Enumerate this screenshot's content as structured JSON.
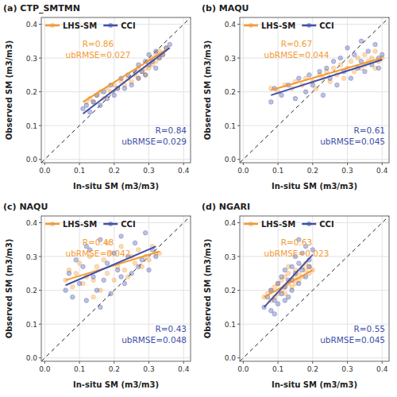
{
  "chart_data": [
    {
      "type": "scatter",
      "title": "(a) CTP_SMTMN",
      "x_label": "In-situ SM (m3/m3)",
      "y_label": "Observed SM (m3/m3)",
      "xlim": [
        -0.01,
        0.42
      ],
      "ylim": [
        -0.01,
        0.42
      ],
      "xticks": [
        {
          "value": 0,
          "label": "0.0"
        },
        0.1,
        0.2,
        0.3,
        0.4
      ],
      "yticks": [
        {
          "value": 0,
          "label": "0.0"
        },
        0.1,
        0.2,
        0.3,
        0.4
      ],
      "grid": true,
      "legend": "top-left",
      "series": [
        {
          "name": "LHS-SM",
          "color": "#f39a33",
          "marker": "circle",
          "x": [
            0.12,
            0.13,
            0.14,
            0.15,
            0.16,
            0.17,
            0.18,
            0.19,
            0.2,
            0.21,
            0.22,
            0.23,
            0.24,
            0.25,
            0.26,
            0.27,
            0.27,
            0.28,
            0.29,
            0.29,
            0.3,
            0.3,
            0.31,
            0.31,
            0.32,
            0.32,
            0.33,
            0.33,
            0.34,
            0.35
          ],
          "values": [
            0.17,
            0.18,
            0.17,
            0.19,
            0.2,
            0.18,
            0.21,
            0.2,
            0.22,
            0.21,
            0.23,
            0.22,
            0.24,
            0.23,
            0.25,
            0.24,
            0.27,
            0.26,
            0.27,
            0.25,
            0.29,
            0.27,
            0.28,
            0.3,
            0.29,
            0.31,
            0.3,
            0.32,
            0.31,
            0.33
          ],
          "fit_x": [
            0.11,
            0.35
          ],
          "fit_values": [
            0.17,
            0.325
          ],
          "annotations": [
            "R=0.86",
            "ubRMSE=0.027"
          ]
        },
        {
          "name": "CCI",
          "color": "#4050a8",
          "marker": "circle",
          "x": [
            0.11,
            0.12,
            0.13,
            0.14,
            0.15,
            0.16,
            0.17,
            0.18,
            0.19,
            0.2,
            0.21,
            0.22,
            0.23,
            0.24,
            0.25,
            0.26,
            0.27,
            0.27,
            0.28,
            0.29,
            0.29,
            0.3,
            0.3,
            0.31,
            0.32,
            0.32,
            0.33,
            0.34,
            0.35,
            0.36
          ],
          "values": [
            0.15,
            0.16,
            0.14,
            0.17,
            0.19,
            0.16,
            0.2,
            0.18,
            0.22,
            0.19,
            0.21,
            0.24,
            0.21,
            0.25,
            0.22,
            0.26,
            0.24,
            0.28,
            0.26,
            0.29,
            0.25,
            0.28,
            0.31,
            0.29,
            0.27,
            0.32,
            0.3,
            0.31,
            0.33,
            0.34
          ],
          "fit_x": [
            0.11,
            0.36
          ],
          "fit_values": [
            0.135,
            0.33
          ],
          "annotations": [
            "R=0.84",
            "ubRMSE=0.029"
          ]
        }
      ]
    },
    {
      "type": "scatter",
      "title": "(b) MAQU",
      "x_label": "In-situ SM (m3/m3)",
      "y_label": "Observed SM (m3/m3)",
      "xlim": [
        -0.01,
        0.42
      ],
      "ylim": [
        -0.01,
        0.42
      ],
      "xticks": [
        {
          "value": 0,
          "label": "0.0"
        },
        0.1,
        0.2,
        0.3,
        0.4
      ],
      "yticks": [
        {
          "value": 0,
          "label": "0.0"
        },
        0.1,
        0.2,
        0.3,
        0.4
      ],
      "grid": true,
      "legend": "top-left",
      "series": [
        {
          "name": "LHS-SM",
          "color": "#f39a33",
          "marker": "circle",
          "x": [
            0.08,
            0.1,
            0.12,
            0.14,
            0.15,
            0.17,
            0.18,
            0.2,
            0.21,
            0.22,
            0.23,
            0.24,
            0.25,
            0.26,
            0.27,
            0.28,
            0.29,
            0.3,
            0.31,
            0.32,
            0.33,
            0.34,
            0.35,
            0.35,
            0.36,
            0.37,
            0.38,
            0.38,
            0.39,
            0.4
          ],
          "values": [
            0.21,
            0.2,
            0.22,
            0.21,
            0.23,
            0.22,
            0.24,
            0.23,
            0.21,
            0.25,
            0.24,
            0.26,
            0.23,
            0.27,
            0.25,
            0.28,
            0.24,
            0.27,
            0.29,
            0.26,
            0.3,
            0.27,
            0.31,
            0.28,
            0.29,
            0.3,
            0.27,
            0.32,
            0.29,
            0.3
          ],
          "fit_x": [
            0.08,
            0.4
          ],
          "fit_values": [
            0.205,
            0.3
          ],
          "annotations": [
            "R=0.67",
            "ubRMSE=0.044"
          ]
        },
        {
          "name": "CCI",
          "color": "#4050a8",
          "marker": "circle",
          "x": [
            0.08,
            0.09,
            0.11,
            0.13,
            0.15,
            0.16,
            0.18,
            0.19,
            0.2,
            0.22,
            0.23,
            0.24,
            0.25,
            0.26,
            0.27,
            0.28,
            0.29,
            0.3,
            0.31,
            0.32,
            0.33,
            0.34,
            0.34,
            0.35,
            0.36,
            0.37,
            0.38,
            0.39,
            0.39,
            0.4
          ],
          "values": [
            0.17,
            0.21,
            0.19,
            0.22,
            0.18,
            0.24,
            0.2,
            0.25,
            0.22,
            0.26,
            0.19,
            0.27,
            0.24,
            0.29,
            0.22,
            0.3,
            0.26,
            0.33,
            0.24,
            0.31,
            0.27,
            0.35,
            0.29,
            0.26,
            0.32,
            0.28,
            0.34,
            0.3,
            0.27,
            0.31
          ],
          "fit_x": [
            0.08,
            0.4
          ],
          "fit_values": [
            0.19,
            0.295
          ],
          "annotations": [
            "R=0.61",
            "ubRMSE=0.045"
          ]
        }
      ]
    },
    {
      "type": "scatter",
      "title": "(c) NAQU",
      "x_label": "In-situ SM (m3/m3)",
      "y_label": "Observed SM (m3/m3)",
      "xlim": [
        -0.01,
        0.42
      ],
      "ylim": [
        -0.01,
        0.42
      ],
      "xticks": [
        {
          "value": 0,
          "label": "0.0"
        },
        0.1,
        0.2,
        0.3,
        0.4
      ],
      "yticks": [
        {
          "value": 0,
          "label": "0.0"
        },
        0.1,
        0.2,
        0.3,
        0.4
      ],
      "grid": true,
      "legend": "top-left",
      "series": [
        {
          "name": "LHS-SM",
          "color": "#f39a33",
          "marker": "circle",
          "x": [
            0.06,
            0.07,
            0.08,
            0.09,
            0.1,
            0.11,
            0.12,
            0.13,
            0.14,
            0.15,
            0.16,
            0.17,
            0.18,
            0.19,
            0.2,
            0.21,
            0.22,
            0.23,
            0.24,
            0.25,
            0.26,
            0.27,
            0.28,
            0.29,
            0.3,
            0.31,
            0.32,
            0.33,
            0.14,
            0.18
          ],
          "values": [
            0.23,
            0.26,
            0.21,
            0.25,
            0.28,
            0.22,
            0.24,
            0.3,
            0.23,
            0.27,
            0.2,
            0.29,
            0.25,
            0.31,
            0.23,
            0.27,
            0.33,
            0.26,
            0.24,
            0.3,
            0.28,
            0.32,
            0.27,
            0.3,
            0.29,
            0.33,
            0.31,
            0.31,
            0.18,
            0.34
          ],
          "fit_x": [
            0.06,
            0.33
          ],
          "fit_values": [
            0.23,
            0.315
          ],
          "annotations": [
            "R=0.48",
            "ubRMSE=0.042"
          ]
        },
        {
          "name": "CCI",
          "color": "#4050a8",
          "marker": "circle",
          "x": [
            0.06,
            0.07,
            0.08,
            0.09,
            0.1,
            0.11,
            0.12,
            0.13,
            0.14,
            0.15,
            0.16,
            0.17,
            0.18,
            0.19,
            0.2,
            0.21,
            0.22,
            0.23,
            0.24,
            0.25,
            0.26,
            0.27,
            0.28,
            0.29,
            0.3,
            0.31,
            0.32,
            0.12,
            0.16,
            0.22
          ],
          "values": [
            0.2,
            0.25,
            0.18,
            0.29,
            0.22,
            0.27,
            0.17,
            0.32,
            0.24,
            0.2,
            0.35,
            0.23,
            0.28,
            0.19,
            0.31,
            0.26,
            0.36,
            0.22,
            0.3,
            0.25,
            0.34,
            0.27,
            0.29,
            0.37,
            0.26,
            0.32,
            0.3,
            0.33,
            0.15,
            0.24
          ],
          "fit_x": [
            0.06,
            0.32
          ],
          "fit_values": [
            0.215,
            0.33
          ],
          "annotations": [
            "R=0.43",
            "ubRMSE=0.048"
          ]
        }
      ]
    },
    {
      "type": "scatter",
      "title": "(d) NGARI",
      "x_label": "In-situ SM (m3/m3)",
      "y_label": "Observed SM (m3/m3)",
      "xlim": [
        -0.01,
        0.42
      ],
      "ylim": [
        -0.01,
        0.42
      ],
      "xticks": [
        {
          "value": 0,
          "label": "0.0"
        },
        0.1,
        0.2,
        0.3,
        0.4
      ],
      "yticks": [
        {
          "value": 0,
          "label": "0.0"
        },
        0.1,
        0.2,
        0.3,
        0.4
      ],
      "grid": true,
      "legend": "top-left",
      "series": [
        {
          "name": "LHS-SM",
          "color": "#f39a33",
          "marker": "circle",
          "x": [
            0.06,
            0.07,
            0.08,
            0.08,
            0.09,
            0.1,
            0.1,
            0.11,
            0.11,
            0.12,
            0.12,
            0.13,
            0.13,
            0.14,
            0.14,
            0.15,
            0.15,
            0.16,
            0.16,
            0.17,
            0.17,
            0.18,
            0.18,
            0.19,
            0.19,
            0.2,
            0.09,
            0.12,
            0.15,
            0.13
          ],
          "values": [
            0.18,
            0.19,
            0.2,
            0.17,
            0.21,
            0.19,
            0.22,
            0.2,
            0.23,
            0.21,
            0.24,
            0.22,
            0.25,
            0.23,
            0.21,
            0.24,
            0.26,
            0.23,
            0.25,
            0.27,
            0.24,
            0.26,
            0.28,
            0.25,
            0.27,
            0.26,
            0.18,
            0.19,
            0.22,
            0.27
          ],
          "fit_x": [
            0.06,
            0.2
          ],
          "fit_values": [
            0.18,
            0.26
          ],
          "annotations": [
            "R=0.63",
            "ubRMSE=0.023"
          ]
        },
        {
          "name": "CCI",
          "color": "#4050a8",
          "marker": "circle",
          "x": [
            0.06,
            0.07,
            0.08,
            0.08,
            0.09,
            0.1,
            0.1,
            0.11,
            0.11,
            0.12,
            0.12,
            0.13,
            0.13,
            0.14,
            0.14,
            0.15,
            0.15,
            0.16,
            0.16,
            0.17,
            0.17,
            0.18,
            0.18,
            0.19,
            0.2,
            0.09,
            0.12,
            0.14,
            0.16,
            0.19
          ],
          "values": [
            0.15,
            0.18,
            0.14,
            0.2,
            0.17,
            0.22,
            0.16,
            0.24,
            0.19,
            0.21,
            0.26,
            0.18,
            0.23,
            0.27,
            0.2,
            0.25,
            0.3,
            0.22,
            0.28,
            0.26,
            0.31,
            0.24,
            0.33,
            0.29,
            0.32,
            0.13,
            0.17,
            0.23,
            0.35,
            0.27
          ],
          "fit_x": [
            0.06,
            0.2
          ],
          "fit_values": [
            0.15,
            0.305
          ],
          "annotations": [
            "R=0.55",
            "ubRMSE=0.045"
          ]
        }
      ]
    }
  ]
}
